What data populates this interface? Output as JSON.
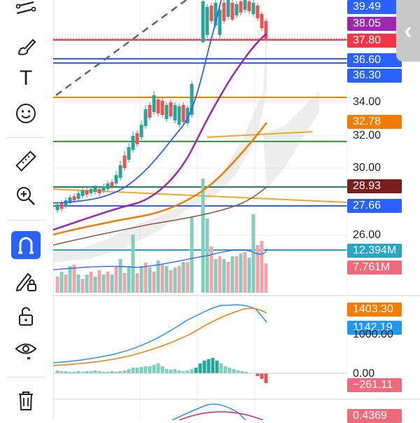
{
  "toolbar": {
    "tools": [
      {
        "icon": "trend-line-icon"
      },
      {
        "icon": "brush-icon"
      },
      {
        "icon": "text-icon",
        "glyph": "T"
      },
      {
        "icon": "emoji-icon"
      },
      {
        "icon": "ruler-icon"
      },
      {
        "icon": "zoom-in-icon"
      },
      {
        "icon": "magnet-icon",
        "active": true
      },
      {
        "icon": "lock-pencil-icon"
      },
      {
        "icon": "unlock-icon"
      },
      {
        "icon": "eye-icon"
      },
      {
        "icon": "trash-icon"
      }
    ]
  },
  "price_scale": {
    "labels": [
      {
        "text": "39.49",
        "bg": "#2962ff"
      },
      {
        "text": "38.05",
        "bg": "#9c27b0"
      },
      {
        "text": "37.80",
        "bg": "#f23645"
      },
      {
        "text": "36.60",
        "bg": "#2962ff"
      },
      {
        "text": "36.30",
        "bg": "#2962ff"
      },
      {
        "text": "34.00",
        "bg": ""
      },
      {
        "text": "32.78",
        "bg": "#f57c00"
      },
      {
        "text": "32.00",
        "bg": ""
      },
      {
        "text": "30.00",
        "bg": ""
      },
      {
        "text": "28.93",
        "bg": "#7b1e1e"
      },
      {
        "text": "27.66",
        "bg": "#2962ff"
      },
      {
        "text": "26.00",
        "bg": ""
      },
      {
        "text": "12.394M",
        "bg": "#26a6c4"
      },
      {
        "text": "7.761M",
        "bg": "#f06b7a"
      }
    ]
  },
  "macd_scale": {
    "labels": [
      {
        "text": "1403.30",
        "bg": "#f57c00"
      },
      {
        "text": "1142.19",
        "bg": "#2196f3"
      },
      {
        "text": "1000.00",
        "bg": ""
      },
      {
        "text": "0.00",
        "bg": ""
      },
      {
        "text": "−261.11",
        "bg": "#f06b7a"
      }
    ]
  },
  "osc_scale": {
    "labels": [
      {
        "text": "0.4369",
        "bg": "#f06b7a"
      }
    ]
  },
  "colors": {
    "up": "#26a69a",
    "down": "#ef5350",
    "ma_fast": "#2962ff",
    "ma_slow": "#9c27b0",
    "hline_red": "#f23645",
    "hline_blue": "#2962ff",
    "hline_orange": "#f57c00",
    "hline_green": "#2e9d3a"
  },
  "scroll_tab": {
    "glyph": "‹"
  }
}
